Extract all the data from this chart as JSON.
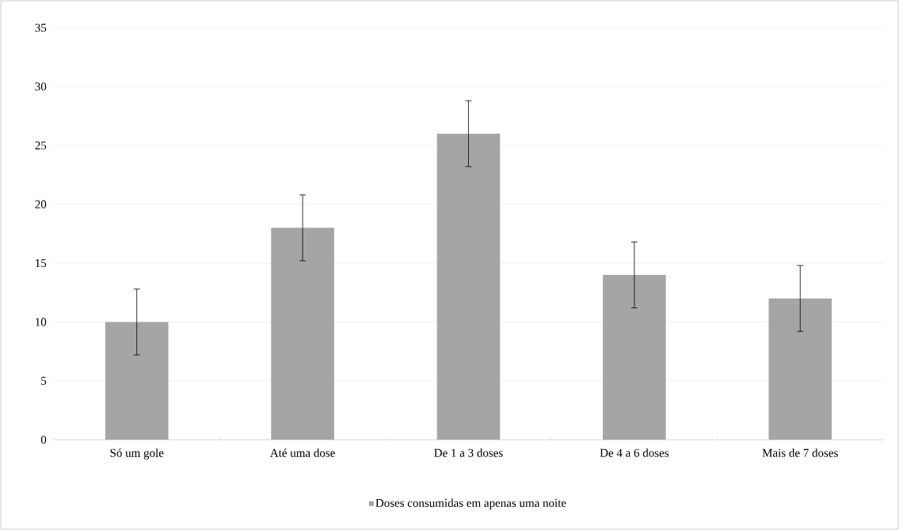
{
  "chart_data": {
    "type": "bar",
    "categories": [
      "Só um gole",
      "Até uma dose",
      "De 1 a 3 doses",
      "De 4 a 6 doses",
      "Mais de 7 doses"
    ],
    "series": [
      {
        "name": "Doses consumidas em apenas uma noite",
        "color": "#a5a5a5",
        "values": [
          10,
          18,
          26,
          14,
          12
        ],
        "errors": [
          2.8,
          2.8,
          2.8,
          2.8,
          2.8
        ]
      }
    ],
    "ylim": [
      0,
      35
    ],
    "yticks": [
      0,
      5,
      10,
      15,
      20,
      25,
      30,
      35
    ],
    "grid": "y",
    "legend": "bottom"
  }
}
